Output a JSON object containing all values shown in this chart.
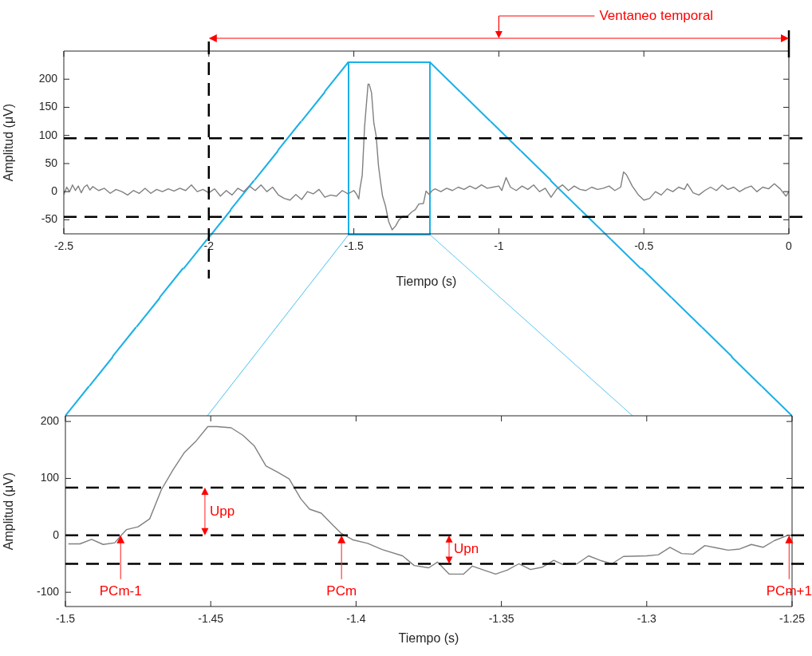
{
  "chart_data": [
    {
      "type": "line",
      "xlabel": "Tiempo (s)",
      "ylabel": "Amplitud (μV)",
      "color": "#808080",
      "xlim": [
        -2.5,
        0
      ],
      "ylim": [
        -75,
        250
      ],
      "xticks": [
        -2.5,
        -2,
        -1.5,
        -1,
        -0.5,
        0
      ],
      "yticks": [
        -50,
        0,
        50,
        100,
        150,
        200
      ],
      "x": [
        -2.5,
        -2.49,
        -2.48,
        -2.47,
        -2.46,
        -2.45,
        -2.44,
        -2.43,
        -2.42,
        -2.41,
        -2.4,
        -2.38,
        -2.36,
        -2.34,
        -2.32,
        -2.3,
        -2.28,
        -2.26,
        -2.24,
        -2.22,
        -2.2,
        -2.18,
        -2.16,
        -2.14,
        -2.12,
        -2.1,
        -2.08,
        -2.06,
        -2.04,
        -2.02,
        -2,
        -1.98,
        -1.96,
        -1.94,
        -1.92,
        -1.9,
        -1.88,
        -1.86,
        -1.84,
        -1.82,
        -1.8,
        -1.78,
        -1.76,
        -1.74,
        -1.72,
        -1.7,
        -1.68,
        -1.66,
        -1.64,
        -1.62,
        -1.6,
        -1.58,
        -1.56,
        -1.54,
        -1.52,
        -1.5,
        -1.49,
        -1.483,
        -1.479,
        -1.471,
        -1.463,
        -1.455,
        -1.451,
        -1.447,
        -1.439,
        -1.431,
        -1.423,
        -1.415,
        -1.408,
        -1.401,
        -1.391,
        -1.38,
        -1.368,
        -1.356,
        -1.344,
        -1.332,
        -1.316,
        -1.3,
        -1.288,
        -1.276,
        -1.26,
        -1.251,
        -1.24,
        -1.23,
        -1.22,
        -1.2,
        -1.18,
        -1.16,
        -1.14,
        -1.12,
        -1.1,
        -1.08,
        -1.06,
        -1.04,
        -1.02,
        -1,
        -0.99,
        -0.975,
        -0.96,
        -0.94,
        -0.92,
        -0.9,
        -0.88,
        -0.86,
        -0.84,
        -0.82,
        -0.8,
        -0.78,
        -0.76,
        -0.74,
        -0.72,
        -0.7,
        -0.68,
        -0.66,
        -0.64,
        -0.62,
        -0.6,
        -0.58,
        -0.57,
        -0.56,
        -0.54,
        -0.52,
        -0.5,
        -0.48,
        -0.46,
        -0.44,
        -0.42,
        -0.4,
        -0.38,
        -0.36,
        -0.35,
        -0.33,
        -0.31,
        -0.29,
        -0.27,
        -0.25,
        -0.23,
        -0.21,
        -0.19,
        -0.17,
        -0.15,
        -0.13,
        -0.11,
        -0.09,
        -0.07,
        -0.05,
        -0.03,
        -0.01,
        0
      ],
      "values": [
        -5,
        8,
        0,
        12,
        2,
        10,
        -2,
        8,
        12,
        3,
        9,
        2,
        6,
        -3,
        4,
        0,
        -6,
        2,
        -3,
        6,
        -3,
        4,
        0,
        5,
        1,
        6,
        2,
        12,
        0,
        4,
        -2,
        5,
        -8,
        2,
        -6,
        6,
        0,
        10,
        2,
        12,
        0,
        8,
        -6,
        -12,
        -15,
        -5,
        -14,
        0,
        -4,
        4,
        -10,
        -6,
        -8,
        2,
        -4,
        2,
        -5,
        -13,
        5,
        29,
        115,
        166,
        191,
        191,
        176,
        122,
        99,
        46,
        18,
        -8,
        -25,
        -53,
        -68,
        -61,
        -50,
        -44,
        -44,
        -36,
        -32,
        -22,
        -21,
        1,
        -5,
        2,
        5,
        0,
        6,
        2,
        8,
        4,
        10,
        5,
        12,
        6,
        8,
        10,
        2,
        25,
        8,
        2,
        10,
        4,
        12,
        0,
        6,
        -10,
        5,
        12,
        2,
        10,
        4,
        2,
        8,
        4,
        6,
        10,
        2,
        8,
        35,
        30,
        10,
        -5,
        -15,
        -12,
        0,
        -6,
        5,
        0,
        8,
        4,
        14,
        -2,
        -6,
        2,
        8,
        2,
        12,
        4,
        8,
        0,
        6,
        10,
        0,
        8,
        5,
        14,
        5,
        -8,
        0
      ],
      "ref_lines": [
        {
          "axis": "y",
          "value": 95,
          "line_style": "dashed",
          "color": "#000000"
        },
        {
          "axis": "y",
          "value": -45,
          "line_style": "dashed",
          "color": "#000000"
        },
        {
          "axis": "x",
          "value": -2,
          "line_style": "dashed",
          "color": "#000000"
        }
      ],
      "annotations": [
        "Ventaneo temporal"
      ]
    },
    {
      "type": "line",
      "xlabel": "Tiempo (s)",
      "ylabel": "Amplitud (μV)",
      "color": "#808080",
      "xlim": [
        -1.5,
        -1.25
      ],
      "ylim": [
        -125,
        210
      ],
      "xticks": [
        -1.5,
        -1.45,
        -1.4,
        -1.35,
        -1.3,
        -1.25
      ],
      "yticks": [
        -100,
        0,
        100,
        200
      ],
      "x": [
        -1.499,
        -1.495,
        -1.491,
        -1.487,
        -1.483,
        -1.481,
        -1.479,
        -1.475,
        -1.471,
        -1.467,
        -1.463,
        -1.459,
        -1.455,
        -1.451,
        -1.448,
        -1.443,
        -1.439,
        -1.435,
        -1.431,
        -1.427,
        -1.423,
        -1.419,
        -1.416,
        -1.412,
        -1.408,
        -1.405,
        -1.401,
        -1.396,
        -1.391,
        -1.384,
        -1.38,
        -1.375,
        -1.372,
        -1.368,
        -1.363,
        -1.36,
        -1.356,
        -1.352,
        -1.348,
        -1.344,
        -1.34,
        -1.336,
        -1.332,
        -1.329,
        -1.324,
        -1.32,
        -1.316,
        -1.312,
        -1.308,
        -1.3,
        -1.296,
        -1.292,
        -1.288,
        -1.284,
        -1.28,
        -1.276,
        -1.272,
        -1.268,
        -1.264,
        -1.26,
        -1.256,
        -1.251
      ],
      "values": [
        -15,
        -15,
        -7,
        -16,
        -13,
        -1,
        10,
        15,
        29,
        80,
        115,
        146,
        166,
        191,
        191,
        189,
        176,
        157,
        122,
        111,
        99,
        64,
        46,
        39,
        18,
        3,
        -8,
        -14,
        -25,
        -36,
        -53,
        -57,
        -47,
        -68,
        -68,
        -54,
        -61,
        -68,
        -61,
        -50,
        -60,
        -56,
        -44,
        -51,
        -50,
        -36,
        -44,
        -50,
        -37,
        -36,
        -34,
        -21,
        -32,
        -33,
        -18,
        -22,
        -26,
        -24,
        -16,
        -21,
        -9,
        1
      ],
      "ref_lines": [
        {
          "axis": "y",
          "value": 84,
          "line_style": "dashed",
          "color": "#000000"
        },
        {
          "axis": "y",
          "value": 0,
          "line_style": "dashed",
          "color": "#000000"
        },
        {
          "axis": "y",
          "value": -50,
          "line_style": "dashed",
          "color": "#000000"
        }
      ],
      "annotations": [
        {
          "text": "Upp",
          "x": -1.452,
          "y": 84
        },
        {
          "text": "Upn",
          "x": -1.368,
          "y": 0
        },
        {
          "text": "PCm-1",
          "x": -1.481,
          "y": 0
        },
        {
          "text": "PCm",
          "x": -1.405,
          "y": 0
        },
        {
          "text": "PCm+1",
          "x": -1.251,
          "y": 0
        }
      ]
    }
  ]
}
